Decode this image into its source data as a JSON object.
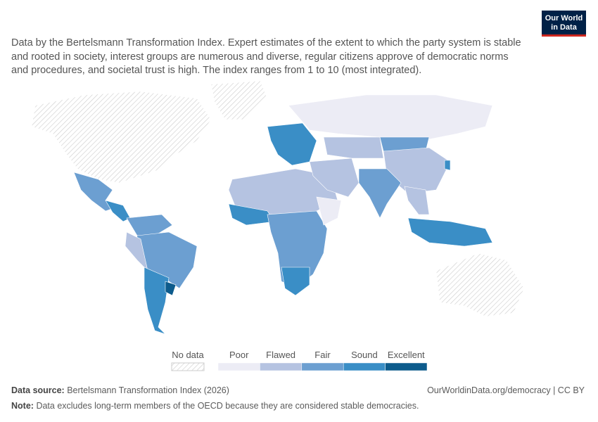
{
  "logo": {
    "line1": "Our World",
    "line2": "in Data"
  },
  "subtitle": "Data by the Bertelsmann Transformation Index. Expert estimates of the extent to which the party system is stable and rooted in society, interest groups are numerous and diverse, regular citizens approve of democratic norms and procedures, and societal trust is high. The index ranges from 1 to 10 (most integrated).",
  "legend": {
    "no_data": "No data",
    "items": [
      {
        "label": "Poor",
        "color": "#ececf5"
      },
      {
        "label": "Flawed",
        "color": "#b5c3e1"
      },
      {
        "label": "Fair",
        "color": "#6c9fd1"
      },
      {
        "label": "Sound",
        "color": "#3a8ec6"
      },
      {
        "label": "Excellent",
        "color": "#0d5b8c"
      }
    ]
  },
  "footer": {
    "source_label": "Data source:",
    "source": "Bertelsmann Transformation Index (2026)",
    "url": "OurWorldinData.org/democracy | CC BY",
    "note_label": "Note:",
    "note": "Data excludes long-term members of the OECD because they are considered stable democracies."
  }
}
